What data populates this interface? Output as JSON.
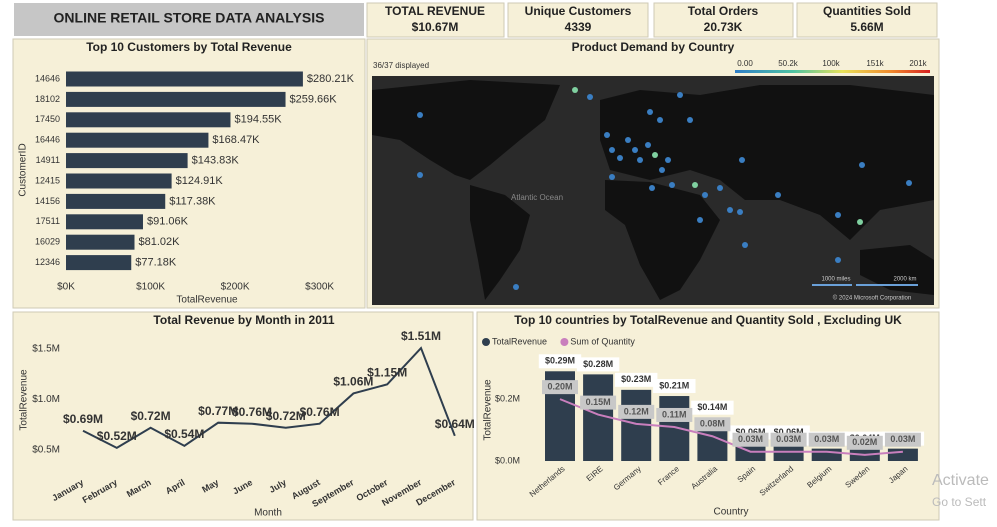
{
  "header": {
    "title": "ONLINE RETAIL STORE DATA ANALYSIS"
  },
  "kpis": [
    {
      "label": "TOTAL REVENUE",
      "value": "$10.67M"
    },
    {
      "label": "Unique Customers",
      "value": "4339"
    },
    {
      "label": "Total Orders",
      "value": "20.73K"
    },
    {
      "label": "Quantities Sold",
      "value": "5.66M"
    }
  ],
  "map": {
    "title": "Product Demand by Country",
    "displayed": "36/37 displayed",
    "legend_labels": [
      "0.00",
      "50.2k",
      "100k",
      "151k",
      "201k"
    ],
    "ocean_label": "Atlantic Ocean",
    "scale_labels": [
      "1000 miles",
      "2000 km"
    ],
    "copyright": "© 2024 Microsoft Corporation"
  },
  "chart_data": [
    {
      "type": "bar",
      "orientation": "horizontal",
      "title": "Top 10 Customers by Total Revenue",
      "x_label": "TotalRevenue",
      "y_label": "CustomerID",
      "color": "#2f3e4e",
      "categories": [
        "14646",
        "18102",
        "17450",
        "16446",
        "14911",
        "12415",
        "14156",
        "17511",
        "16029",
        "12346"
      ],
      "values": [
        280210,
        259660,
        194550,
        168470,
        143830,
        124910,
        117380,
        91060,
        81020,
        77180
      ],
      "value_labels": [
        "$280.21K",
        "$259.66K",
        "$194.55K",
        "$168.47K",
        "$143.83K",
        "$124.91K",
        "$117.38K",
        "$91.06K",
        "$81.02K",
        "$77.18K"
      ],
      "xlim": [
        0,
        330000
      ],
      "xticks": [
        {
          "value": 0,
          "label": "$0K"
        },
        {
          "value": 100000,
          "label": "$100K"
        },
        {
          "value": 200000,
          "label": "$200K"
        },
        {
          "value": 300000,
          "label": "$300K"
        }
      ]
    },
    {
      "type": "line",
      "title": "Total Revenue by Month in 2011",
      "x_label": "Month",
      "y_label": "TotalRevenue",
      "color": "#2f3e4e",
      "categories": [
        "January",
        "February",
        "March",
        "April",
        "May",
        "June",
        "July",
        "August",
        "September",
        "October",
        "November",
        "December"
      ],
      "values": [
        690000,
        520000,
        720000,
        540000,
        770000,
        760000,
        720000,
        760000,
        1060000,
        1150000,
        1510000,
        640000
      ],
      "value_labels": [
        "$0.69M",
        "$0.52M",
        "$0.72M",
        "$0.54M",
        "$0.77M",
        "$0.76M",
        "$0.72M",
        "$0.76M",
        "$1.06M",
        "$1.15M",
        "$1.51M",
        "$0.64M"
      ],
      "ylim": [
        400000,
        1600000
      ],
      "yticks": [
        {
          "value": 500000,
          "label": "$0.5M"
        },
        {
          "value": 1000000,
          "label": "$1.0M"
        },
        {
          "value": 1500000,
          "label": "$1.5M"
        }
      ]
    },
    {
      "type": "combo",
      "title": "Top 10 countries by TotalRevenue and Quantity Sold , Excluding UK",
      "x_label": "Country",
      "y_label": "TotalRevenue",
      "categories": [
        "Netherlands",
        "EIRE",
        "Germany",
        "France",
        "Australia",
        "Spain",
        "Switzerland",
        "Belgium",
        "Sweden",
        "Japan"
      ],
      "series": [
        {
          "name": "TotalRevenue",
          "type": "bar",
          "color": "#2f3e4e",
          "values": [
            290000,
            280000,
            230000,
            210000,
            140000,
            60000,
            60000,
            40000,
            40000,
            40000
          ],
          "value_labels": [
            "$0.29M",
            "$0.28M",
            "$0.23M",
            "$0.21M",
            "$0.14M",
            "$0.06M",
            "$0.06M",
            "$0.04M",
            "$0.04M",
            "$0.04M"
          ]
        },
        {
          "name": "Sum of Quantity",
          "type": "line",
          "color": "#c97fbd",
          "values": [
            200000,
            150000,
            120000,
            110000,
            80000,
            30000,
            30000,
            30000,
            20000,
            30000
          ],
          "value_labels": [
            "0.20M",
            "0.15M",
            "0.12M",
            "0.11M",
            "0.08M",
            "0.03M",
            "0.03M",
            "0.03M",
            "0.02M",
            "0.03M"
          ]
        }
      ],
      "ylim": [
        0,
        320000
      ],
      "yticks": [
        {
          "value": 0,
          "label": "$0.0M"
        },
        {
          "value": 200000,
          "label": "$0.2M"
        }
      ]
    }
  ],
  "watermark": [
    "Activate",
    "Go to Sett"
  ]
}
